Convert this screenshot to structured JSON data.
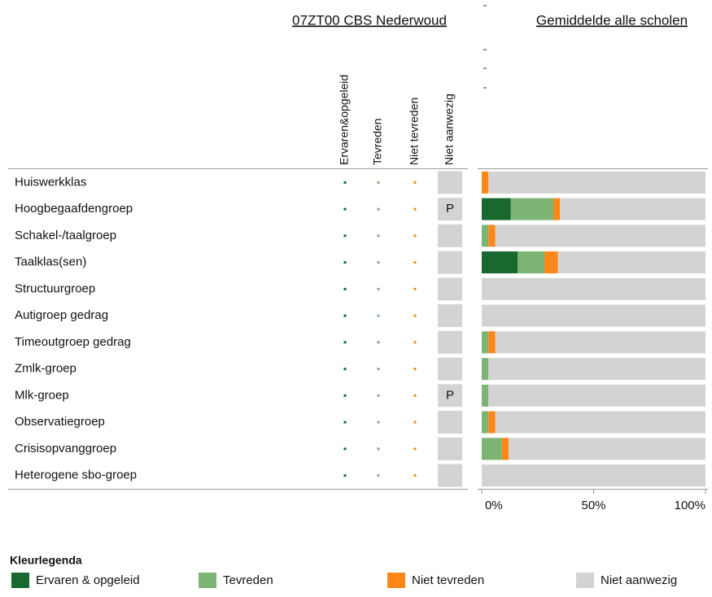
{
  "chart_data": {
    "type": "stacked-barh",
    "title": "07ZT00 CBS Nederwoud",
    "subtitle": "Gemiddelde alle scholen",
    "columns": [
      "Ervaren&opgeleid",
      "Tevreden",
      "Niet tevreden",
      "Niet aanwezig"
    ],
    "categories": [
      "Huiswerkklas",
      "Hoogbegaafdengroep",
      "Schakel-/taalgroep",
      "Taalklas(sen)",
      "Structuurgroep",
      "Autigroep gedrag",
      "Timeoutgroep gedrag",
      "Zmlk-groep",
      "Mlk-groep",
      "Observatiegroep",
      "Crisisopvanggroep",
      "Heterogene sbo-groep"
    ],
    "niet_aanwezig_labels": [
      null,
      "P",
      null,
      null,
      null,
      null,
      null,
      null,
      "P",
      null,
      null,
      null
    ],
    "series": [
      {
        "name": "Ervaren & opgeleid",
        "color": "#17692f",
        "values": [
          0,
          13,
          0,
          16,
          0,
          0,
          0,
          0,
          0,
          0,
          0,
          0
        ]
      },
      {
        "name": "Tevreden",
        "color": "#7cb474",
        "values": [
          0,
          19,
          3,
          12,
          0,
          0,
          3,
          3,
          3,
          3,
          9,
          0
        ]
      },
      {
        "name": "Niet tevreden",
        "color": "#ff8718",
        "values": [
          3,
          3,
          3,
          6,
          0,
          0,
          3,
          0,
          0,
          3,
          3,
          0
        ]
      },
      {
        "name": "Niet aanwezig",
        "color": "#d3d3d3",
        "values": [
          97,
          65,
          94,
          66,
          100,
          100,
          94,
          97,
          97,
          94,
          88,
          100
        ]
      }
    ],
    "xlim": [
      0,
      100
    ],
    "xticks": [
      {
        "value": 0,
        "label": "0%"
      },
      {
        "value": 50,
        "label": "50%"
      },
      {
        "value": 100,
        "label": "100%"
      }
    ],
    "legend_title": "Kleurlegenda"
  }
}
